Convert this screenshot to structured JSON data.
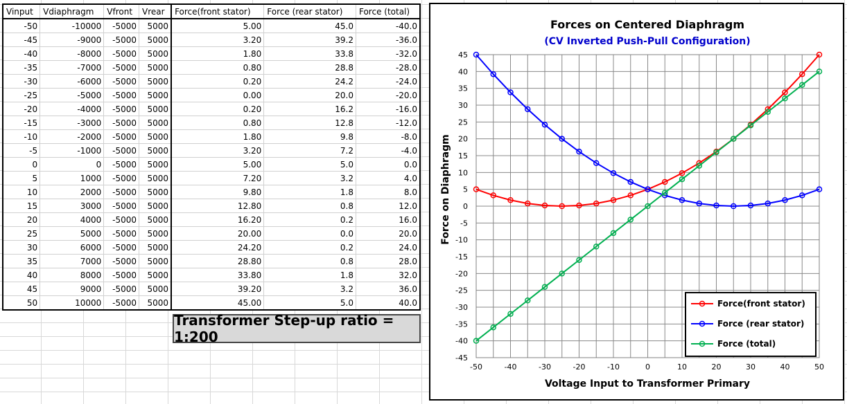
{
  "table": {
    "headers": [
      "Vinput",
      "Vdiaphragm",
      "Vfront",
      "Vrear",
      "Force(front stator)",
      "Force (rear stator)",
      "Force (total)"
    ],
    "rows": [
      [
        "-50",
        "-10000",
        "-5000",
        "5000",
        "5.00",
        "45.0",
        "-40.0"
      ],
      [
        "-45",
        "-9000",
        "-5000",
        "5000",
        "3.20",
        "39.2",
        "-36.0"
      ],
      [
        "-40",
        "-8000",
        "-5000",
        "5000",
        "1.80",
        "33.8",
        "-32.0"
      ],
      [
        "-35",
        "-7000",
        "-5000",
        "5000",
        "0.80",
        "28.8",
        "-28.0"
      ],
      [
        "-30",
        "-6000",
        "-5000",
        "5000",
        "0.20",
        "24.2",
        "-24.0"
      ],
      [
        "-25",
        "-5000",
        "-5000",
        "5000",
        "0.00",
        "20.0",
        "-20.0"
      ],
      [
        "-20",
        "-4000",
        "-5000",
        "5000",
        "0.20",
        "16.2",
        "-16.0"
      ],
      [
        "-15",
        "-3000",
        "-5000",
        "5000",
        "0.80",
        "12.8",
        "-12.0"
      ],
      [
        "-10",
        "-2000",
        "-5000",
        "5000",
        "1.80",
        "9.8",
        "-8.0"
      ],
      [
        "-5",
        "-1000",
        "-5000",
        "5000",
        "3.20",
        "7.2",
        "-4.0"
      ],
      [
        "0",
        "0",
        "-5000",
        "5000",
        "5.00",
        "5.0",
        "0.0"
      ],
      [
        "5",
        "1000",
        "-5000",
        "5000",
        "7.20",
        "3.2",
        "4.0"
      ],
      [
        "10",
        "2000",
        "-5000",
        "5000",
        "9.80",
        "1.8",
        "8.0"
      ],
      [
        "15",
        "3000",
        "-5000",
        "5000",
        "12.80",
        "0.8",
        "12.0"
      ],
      [
        "20",
        "4000",
        "-5000",
        "5000",
        "16.20",
        "0.2",
        "16.0"
      ],
      [
        "25",
        "5000",
        "-5000",
        "5000",
        "20.00",
        "0.0",
        "20.0"
      ],
      [
        "30",
        "6000",
        "-5000",
        "5000",
        "24.20",
        "0.2",
        "24.0"
      ],
      [
        "35",
        "7000",
        "-5000",
        "5000",
        "28.80",
        "0.8",
        "28.0"
      ],
      [
        "40",
        "8000",
        "-5000",
        "5000",
        "33.80",
        "1.8",
        "32.0"
      ],
      [
        "45",
        "9000",
        "-5000",
        "5000",
        "39.20",
        "3.2",
        "36.0"
      ],
      [
        "50",
        "10000",
        "-5000",
        "5000",
        "45.00",
        "5.0",
        "40.0"
      ]
    ]
  },
  "ratio_label": "Transformer Step-up ratio = 1:200",
  "chart_data": {
    "type": "line",
    "title": "Forces on Centered Diaphragm",
    "subtitle": "(CV Inverted Push-Pull Configuration)",
    "xlabel": "Voltage Input to Transformer Primary",
    "ylabel": "Force on Diaphragm",
    "xlim": [
      -50,
      50
    ],
    "ylim": [
      -45,
      45
    ],
    "xticks": [
      -50,
      -40,
      -30,
      -20,
      -10,
      0,
      10,
      20,
      30,
      40,
      50
    ],
    "yticks": [
      45,
      40,
      35,
      30,
      25,
      20,
      15,
      10,
      5,
      0,
      -5,
      -10,
      -15,
      -20,
      -25,
      -30,
      -35,
      -40,
      -45
    ],
    "grid": true,
    "legend_position": "bottom-right",
    "x": [
      -50,
      -45,
      -40,
      -35,
      -30,
      -25,
      -20,
      -15,
      -10,
      -5,
      0,
      5,
      10,
      15,
      20,
      25,
      30,
      35,
      40,
      45,
      50
    ],
    "series": [
      {
        "name": "Force(front stator)",
        "color": "#ff0000",
        "values": [
          5.0,
          3.2,
          1.8,
          0.8,
          0.2,
          0.0,
          0.2,
          0.8,
          1.8,
          3.2,
          5.0,
          7.2,
          9.8,
          12.8,
          16.2,
          20.0,
          24.2,
          28.8,
          33.8,
          39.2,
          45.0
        ]
      },
      {
        "name": "Force (rear stator)",
        "color": "#0000ff",
        "values": [
          45.0,
          39.2,
          33.8,
          28.8,
          24.2,
          20.0,
          16.2,
          12.8,
          9.8,
          7.2,
          5.0,
          3.2,
          1.8,
          0.8,
          0.2,
          0.0,
          0.2,
          0.8,
          1.8,
          3.2,
          5.0
        ]
      },
      {
        "name": "Force (total)",
        "color": "#00b050",
        "values": [
          -40.0,
          -36.0,
          -32.0,
          -28.0,
          -24.0,
          -20.0,
          -16.0,
          -12.0,
          -8.0,
          -4.0,
          0.0,
          4.0,
          8.0,
          12.0,
          16.0,
          20.0,
          24.0,
          28.0,
          32.0,
          36.0,
          40.0
        ]
      }
    ]
  }
}
